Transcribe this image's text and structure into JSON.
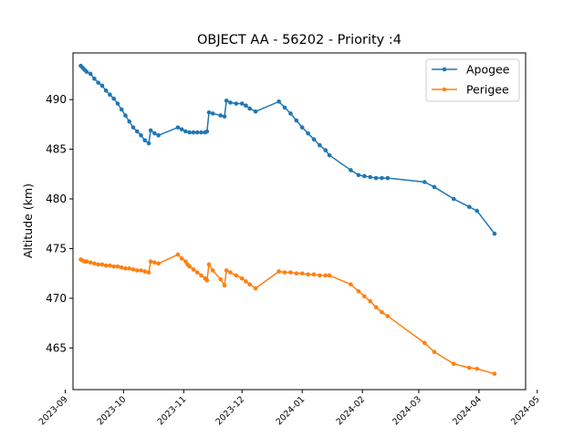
{
  "chart_data": {
    "type": "line",
    "title": "OBJECT AA - 56202 - Priority :4",
    "xlabel": "",
    "ylabel": "Altitude (km)",
    "xlim": [
      "2023-09-05",
      "2024-04-25"
    ],
    "ylim": [
      460.8,
      494.7
    ],
    "x_ticks": [
      "2023-09",
      "2023-10",
      "2023-11",
      "2023-12",
      "2024-01",
      "2024-02",
      "2024-03",
      "2024-04",
      "2024-05"
    ],
    "y_ticks": [
      465,
      470,
      475,
      480,
      485,
      490
    ],
    "legend": {
      "placement": "top-right"
    },
    "grid": false,
    "series": [
      {
        "name": "Apogee",
        "color": "#1f77b4",
        "points": [
          [
            "2023-09-09",
            493.4
          ],
          [
            "2023-09-10",
            493.2
          ],
          [
            "2023-09-11",
            493.0
          ],
          [
            "2023-09-12",
            492.8
          ],
          [
            "2023-09-14",
            492.6
          ],
          [
            "2023-09-16",
            492.1
          ],
          [
            "2023-09-18",
            491.7
          ],
          [
            "2023-09-20",
            491.4
          ],
          [
            "2023-09-22",
            490.9
          ],
          [
            "2023-09-24",
            490.5
          ],
          [
            "2023-09-26",
            490.1
          ],
          [
            "2023-09-28",
            489.6
          ],
          [
            "2023-09-30",
            489.0
          ],
          [
            "2023-10-02",
            488.4
          ],
          [
            "2023-10-04",
            487.8
          ],
          [
            "2023-10-06",
            487.2
          ],
          [
            "2023-10-08",
            486.8
          ],
          [
            "2023-10-10",
            486.4
          ],
          [
            "2023-10-12",
            485.9
          ],
          [
            "2023-10-14",
            485.6
          ],
          [
            "2023-10-15",
            486.9
          ],
          [
            "2023-10-17",
            486.6
          ],
          [
            "2023-10-19",
            486.4
          ],
          [
            "2023-10-29",
            487.2
          ],
          [
            "2023-10-31",
            487.0
          ],
          [
            "2023-11-02",
            486.8
          ],
          [
            "2023-11-04",
            486.7
          ],
          [
            "2023-11-06",
            486.7
          ],
          [
            "2023-11-08",
            486.7
          ],
          [
            "2023-11-10",
            486.7
          ],
          [
            "2023-11-12",
            486.7
          ],
          [
            "2023-11-13",
            486.8
          ],
          [
            "2023-11-14",
            488.7
          ],
          [
            "2023-11-16",
            488.6
          ],
          [
            "2023-11-20",
            488.4
          ],
          [
            "2023-11-22",
            488.3
          ],
          [
            "2023-11-23",
            489.9
          ],
          [
            "2023-11-25",
            489.7
          ],
          [
            "2023-11-28",
            489.6
          ],
          [
            "2023-12-01",
            489.6
          ],
          [
            "2023-12-03",
            489.4
          ],
          [
            "2023-12-05",
            489.1
          ],
          [
            "2023-12-08",
            488.8
          ],
          [
            "2023-12-20",
            489.8
          ],
          [
            "2023-12-23",
            489.2
          ],
          [
            "2023-12-26",
            488.6
          ],
          [
            "2023-12-29",
            487.9
          ],
          [
            "2024-01-01",
            487.2
          ],
          [
            "2024-01-04",
            486.6
          ],
          [
            "2024-01-07",
            486.0
          ],
          [
            "2024-01-10",
            485.4
          ],
          [
            "2024-01-13",
            484.9
          ],
          [
            "2024-01-15",
            484.4
          ],
          [
            "2024-01-26",
            482.9
          ],
          [
            "2024-01-30",
            482.4
          ],
          [
            "2024-02-02",
            482.3
          ],
          [
            "2024-02-05",
            482.2
          ],
          [
            "2024-02-08",
            482.1
          ],
          [
            "2024-02-11",
            482.1
          ],
          [
            "2024-02-14",
            482.1
          ],
          [
            "2024-03-04",
            481.7
          ],
          [
            "2024-03-09",
            481.2
          ],
          [
            "2024-03-19",
            480.0
          ],
          [
            "2024-03-27",
            479.2
          ],
          [
            "2024-03-31",
            478.8
          ],
          [
            "2024-04-09",
            476.5
          ]
        ]
      },
      {
        "name": "Perigee",
        "color": "#ff7f0e",
        "points": [
          [
            "2023-09-09",
            473.9
          ],
          [
            "2023-09-10",
            473.8
          ],
          [
            "2023-09-11",
            473.7
          ],
          [
            "2023-09-12",
            473.7
          ],
          [
            "2023-09-14",
            473.6
          ],
          [
            "2023-09-16",
            473.5
          ],
          [
            "2023-09-18",
            473.4
          ],
          [
            "2023-09-20",
            473.4
          ],
          [
            "2023-09-22",
            473.3
          ],
          [
            "2023-09-24",
            473.3
          ],
          [
            "2023-09-26",
            473.2
          ],
          [
            "2023-09-28",
            473.2
          ],
          [
            "2023-09-30",
            473.1
          ],
          [
            "2023-10-02",
            473.0
          ],
          [
            "2023-10-04",
            473.0
          ],
          [
            "2023-10-06",
            472.9
          ],
          [
            "2023-10-08",
            472.8
          ],
          [
            "2023-10-10",
            472.8
          ],
          [
            "2023-10-12",
            472.7
          ],
          [
            "2023-10-14",
            472.6
          ],
          [
            "2023-10-15",
            473.7
          ],
          [
            "2023-10-17",
            473.6
          ],
          [
            "2023-10-19",
            473.5
          ],
          [
            "2023-10-29",
            474.4
          ],
          [
            "2023-10-31",
            474.0
          ],
          [
            "2023-11-02",
            473.7
          ],
          [
            "2023-11-03",
            473.4
          ],
          [
            "2023-11-04",
            473.2
          ],
          [
            "2023-11-06",
            472.9
          ],
          [
            "2023-11-08",
            472.6
          ],
          [
            "2023-11-10",
            472.3
          ],
          [
            "2023-11-12",
            472.0
          ],
          [
            "2023-11-13",
            471.8
          ],
          [
            "2023-11-14",
            473.4
          ],
          [
            "2023-11-16",
            472.8
          ],
          [
            "2023-11-20",
            471.9
          ],
          [
            "2023-11-22",
            471.3
          ],
          [
            "2023-11-23",
            472.8
          ],
          [
            "2023-11-25",
            472.6
          ],
          [
            "2023-11-28",
            472.3
          ],
          [
            "2023-12-01",
            472.0
          ],
          [
            "2023-12-03",
            471.7
          ],
          [
            "2023-12-05",
            471.4
          ],
          [
            "2023-12-08",
            471.0
          ],
          [
            "2023-12-20",
            472.7
          ],
          [
            "2023-12-23",
            472.6
          ],
          [
            "2023-12-26",
            472.6
          ],
          [
            "2023-12-29",
            472.5
          ],
          [
            "2024-01-01",
            472.5
          ],
          [
            "2024-01-04",
            472.4
          ],
          [
            "2024-01-07",
            472.4
          ],
          [
            "2024-01-10",
            472.3
          ],
          [
            "2024-01-13",
            472.3
          ],
          [
            "2024-01-15",
            472.3
          ],
          [
            "2024-01-26",
            471.4
          ],
          [
            "2024-01-30",
            470.7
          ],
          [
            "2024-02-02",
            470.2
          ],
          [
            "2024-02-05",
            469.7
          ],
          [
            "2024-02-08",
            469.1
          ],
          [
            "2024-02-11",
            468.6
          ],
          [
            "2024-02-14",
            468.2
          ],
          [
            "2024-03-04",
            465.5
          ],
          [
            "2024-03-09",
            464.6
          ],
          [
            "2024-03-19",
            463.4
          ],
          [
            "2024-03-27",
            463.0
          ],
          [
            "2024-03-31",
            462.9
          ],
          [
            "2024-04-09",
            462.4
          ]
        ]
      }
    ]
  }
}
